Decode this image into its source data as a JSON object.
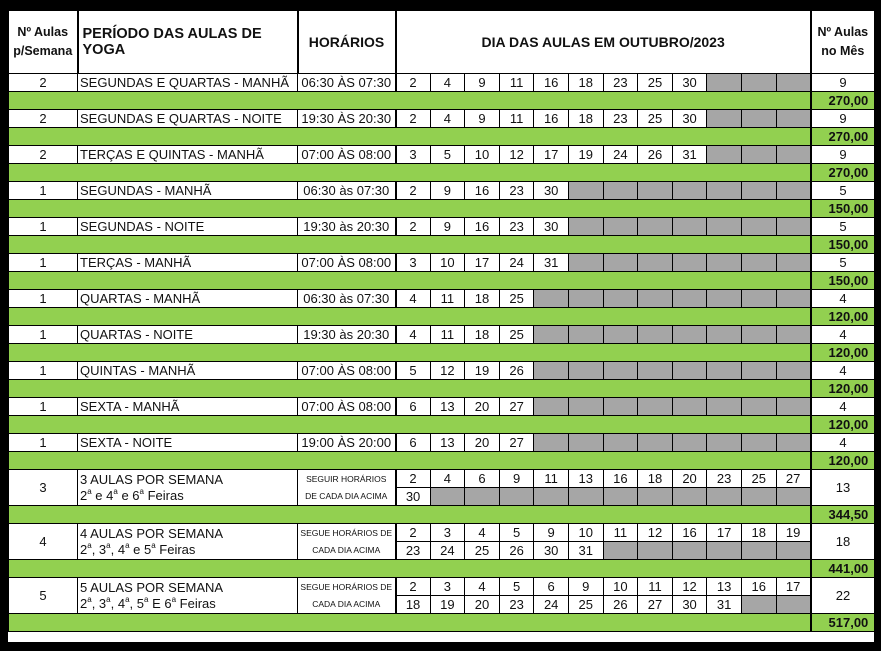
{
  "header": {
    "count_label_1": "Nº Aulas",
    "count_label_2": "p/Semana",
    "period_label": "PERÍODO DAS AULAS DE YOGA",
    "schedule_label": "HORÁRIOS",
    "days_label": "DIA DAS AULAS EM OUTUBRO/2023",
    "month_label_1": "Nº Aulas",
    "month_label_2": "no Mês"
  },
  "colors": {
    "green": "#92d050",
    "gray": "#a6a6a6"
  },
  "rows": [
    {
      "per_week": "2",
      "period": "SEGUNDAS E QUARTAS - MANHÃ",
      "schedule": "06:30 ÀS 07:30",
      "days": [
        "2",
        "4",
        "9",
        "11",
        "16",
        "18",
        "23",
        "25",
        "30"
      ],
      "month_count": "9",
      "total": "270,00"
    },
    {
      "per_week": "2",
      "period": "SEGUNDAS E QUARTAS - NOITE",
      "schedule": "19:30 ÀS 20:30",
      "days": [
        "2",
        "4",
        "9",
        "11",
        "16",
        "18",
        "23",
        "25",
        "30"
      ],
      "month_count": "9",
      "total": "270,00"
    },
    {
      "per_week": "2",
      "period": "TERÇAS E QUINTAS - MANHÃ",
      "schedule": "07:00 ÀS 08:00",
      "days": [
        "3",
        "5",
        "10",
        "12",
        "17",
        "19",
        "24",
        "26",
        "31"
      ],
      "month_count": "9",
      "total": "270,00"
    },
    {
      "per_week": "1",
      "period": "SEGUNDAS - MANHÃ",
      "schedule": "06:30 às 07:30",
      "days": [
        "2",
        "9",
        "16",
        "23",
        "30"
      ],
      "month_count": "5",
      "total": "150,00"
    },
    {
      "per_week": "1",
      "period": "SEGUNDAS - NOITE",
      "schedule": "19:30 às 20:30",
      "days": [
        "2",
        "9",
        "16",
        "23",
        "30"
      ],
      "month_count": "5",
      "total": "150,00"
    },
    {
      "per_week": "1",
      "period": "TERÇAS - MANHÃ",
      "schedule": "07:00 ÀS 08:00",
      "days": [
        "3",
        "10",
        "17",
        "24",
        "31"
      ],
      "month_count": "5",
      "total": "150,00"
    },
    {
      "per_week": "1",
      "period": "QUARTAS - MANHÃ",
      "schedule": "06:30 às 07:30",
      "days": [
        "4",
        "11",
        "18",
        "25"
      ],
      "month_count": "4",
      "total": "120,00"
    },
    {
      "per_week": "1",
      "period": "QUARTAS - NOITE",
      "schedule": "19:30 às 20:30",
      "days": [
        "4",
        "11",
        "18",
        "25"
      ],
      "month_count": "4",
      "total": "120,00"
    },
    {
      "per_week": "1",
      "period": "QUINTAS - MANHÃ",
      "schedule": "07:00 ÀS 08:00",
      "days": [
        "5",
        "12",
        "19",
        "26"
      ],
      "month_count": "4",
      "total": "120,00"
    },
    {
      "per_week": "1",
      "period": "SEXTA - MANHÃ",
      "schedule": "07:00 ÀS 08:00",
      "days": [
        "6",
        "13",
        "20",
        "27"
      ],
      "month_count": "4",
      "total": "120,00"
    },
    {
      "per_week": "1",
      "period": "SEXTA - NOITE",
      "schedule": "19:00 ÀS 20:00",
      "days": [
        "6",
        "13",
        "20",
        "27"
      ],
      "month_count": "4",
      "total": "120,00"
    }
  ],
  "packages": [
    {
      "per_week": "3",
      "title": "3 AULAS POR SEMANA",
      "subtitle": "2ª e 4ª e 6ª Feiras",
      "schedule_1": "SEGUIR HORÁRIOS",
      "schedule_2": "DE CADA DIA ACIMA",
      "days_1": [
        "2",
        "4",
        "6",
        "9",
        "11",
        "13",
        "16",
        "18",
        "20",
        "23",
        "25",
        "27"
      ],
      "days_2": [
        "30"
      ],
      "month_count": "13",
      "total": "344,50"
    },
    {
      "per_week": "4",
      "title": "4 AULAS POR SEMANA",
      "subtitle": "2ª, 3ª, 4ª e 5ª Feiras",
      "schedule_1": "SEGUE HORÁRIOS DE",
      "schedule_2": "CADA DIA ACIMA",
      "days_1": [
        "2",
        "3",
        "4",
        "5",
        "9",
        "10",
        "11",
        "12",
        "16",
        "17",
        "18",
        "19"
      ],
      "days_2": [
        "23",
        "24",
        "25",
        "26",
        "30",
        "31"
      ],
      "month_count": "18",
      "total": "441,00"
    },
    {
      "per_week": "5",
      "title": "5 AULAS POR SEMANA",
      "subtitle": "2ª, 3ª, 4ª, 5ª E 6ª Feiras",
      "schedule_1": "SEGUE HORÁRIOS DE",
      "schedule_2": "CADA DIA ACIMA",
      "days_1": [
        "2",
        "3",
        "4",
        "5",
        "6",
        "9",
        "10",
        "11",
        "12",
        "13",
        "16",
        "17"
      ],
      "days_2": [
        "18",
        "19",
        "20",
        "23",
        "24",
        "25",
        "26",
        "27",
        "30",
        "31"
      ],
      "month_count": "22",
      "total": "517,00"
    }
  ]
}
